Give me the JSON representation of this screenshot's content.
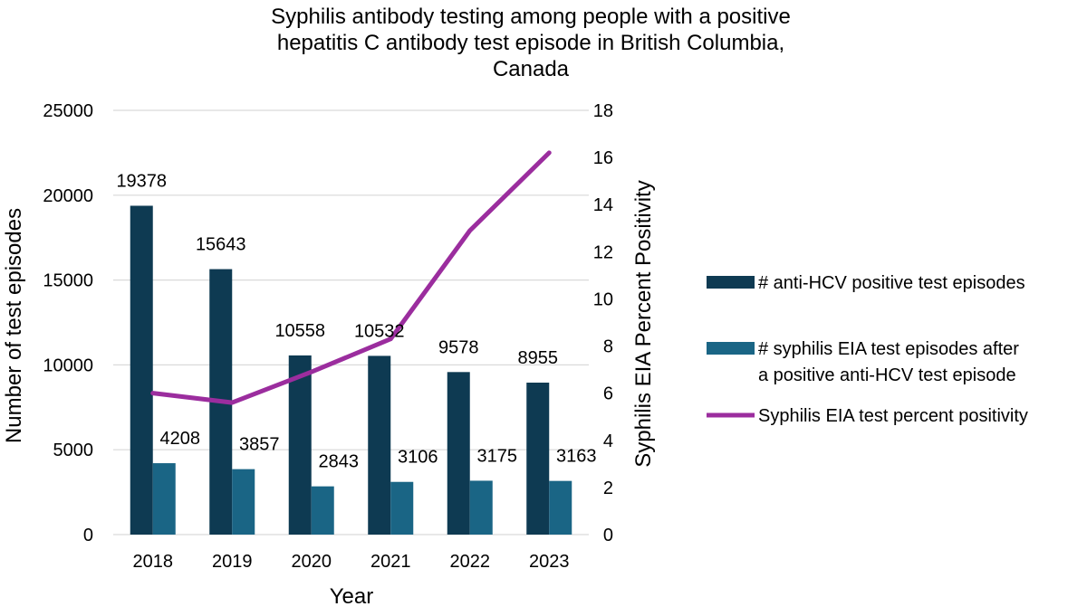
{
  "chart_data": {
    "type": "bar",
    "title_lines": [
      "Syphilis antibody testing among people with a positive",
      "hepatitis C antibody test episode in British Columbia,",
      "Canada"
    ],
    "xlabel": "Year",
    "ylabel": "Number of test episodes",
    "y2label": "Syphilis EIA Percent Positivity",
    "categories": [
      "2018",
      "2019",
      "2020",
      "2021",
      "2022",
      "2023"
    ],
    "ylim": [
      0,
      25000
    ],
    "yticks": [
      0,
      5000,
      10000,
      15000,
      20000,
      25000
    ],
    "y2lim": [
      0,
      18
    ],
    "y2ticks": [
      0,
      2,
      4,
      6,
      8,
      10,
      12,
      14,
      16,
      18
    ],
    "grid": true,
    "legend_position": "right",
    "series": [
      {
        "name": "# anti-HCV positive test episodes",
        "kind": "bar",
        "axis": "left",
        "color": "#0e3a52",
        "values": [
          19378,
          15643,
          10558,
          10532,
          9578,
          8955
        ]
      },
      {
        "name_lines": [
          "# syphilis EIA test episodes after",
          "a positive anti-HCV test episode"
        ],
        "kind": "bar",
        "axis": "left",
        "color": "#1a6585",
        "values": [
          4208,
          3857,
          2843,
          3106,
          3175,
          3163
        ]
      },
      {
        "name": "Syphilis EIA test percent positivity",
        "kind": "line",
        "axis": "right",
        "color": "#9b2d9e",
        "values": [
          6.0,
          5.6,
          6.9,
          8.3,
          12.9,
          16.2
        ]
      }
    ]
  }
}
